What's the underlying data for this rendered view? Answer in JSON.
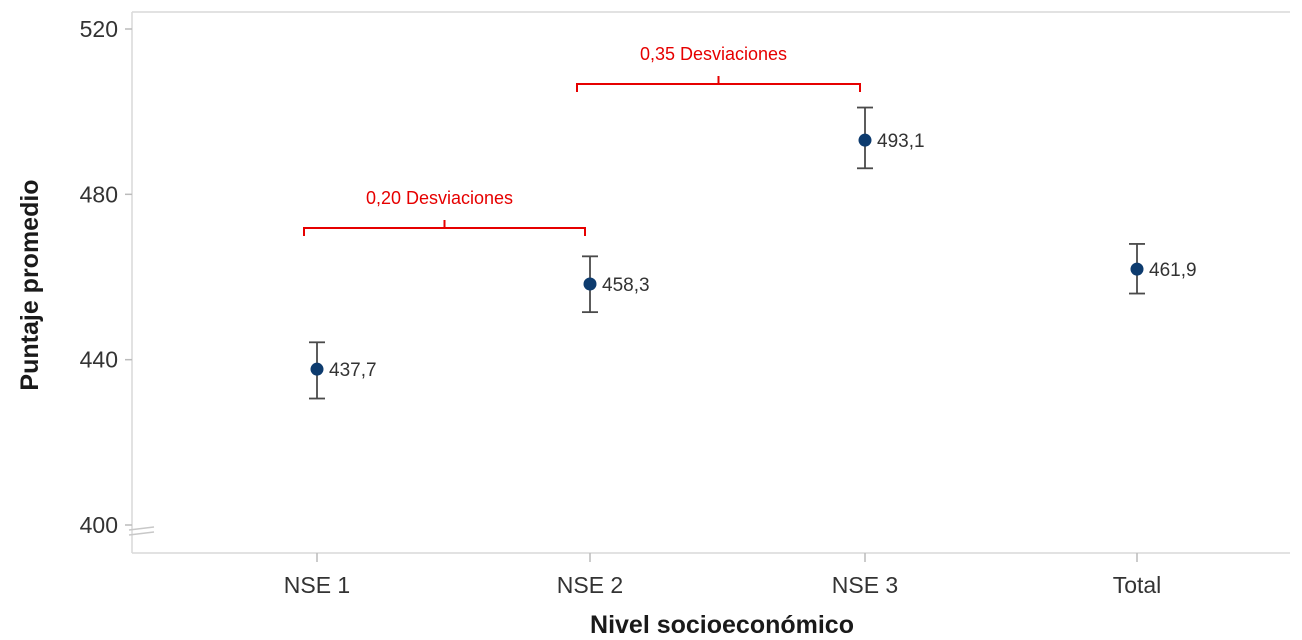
{
  "chart_data": {
    "type": "scatter",
    "xlabel": "Nivel socioeconómico",
    "ylabel": "Puntaje promedio",
    "categories": [
      "NSE 1",
      "NSE 2",
      "NSE 3",
      "Total"
    ],
    "values": [
      437.7,
      458.3,
      493.1,
      461.9
    ],
    "value_labels": [
      "437,7",
      "458,3",
      "493,1",
      "461,9"
    ],
    "error_low": [
      430.6,
      451.5,
      486.3,
      456.0
    ],
    "error_high": [
      444.2,
      465.0,
      501.0,
      468.0
    ],
    "yticks": [
      400,
      440,
      480,
      520
    ],
    "ytick_labels": [
      "400",
      "440",
      "480",
      "520"
    ],
    "ylim": [
      395,
      525
    ],
    "axis_break": true,
    "grid": false,
    "colors": {
      "point": "#0d3b6e",
      "errorbar": "#4a4a4a",
      "annotation": "#e60000",
      "axis": "#d9d9d9"
    },
    "annotations": [
      {
        "label": "0,20 Desviaciones",
        "from": "NSE 1",
        "to": "NSE 2"
      },
      {
        "label": "0,35 Desviaciones",
        "from": "NSE 2",
        "to": "NSE 3"
      }
    ]
  }
}
